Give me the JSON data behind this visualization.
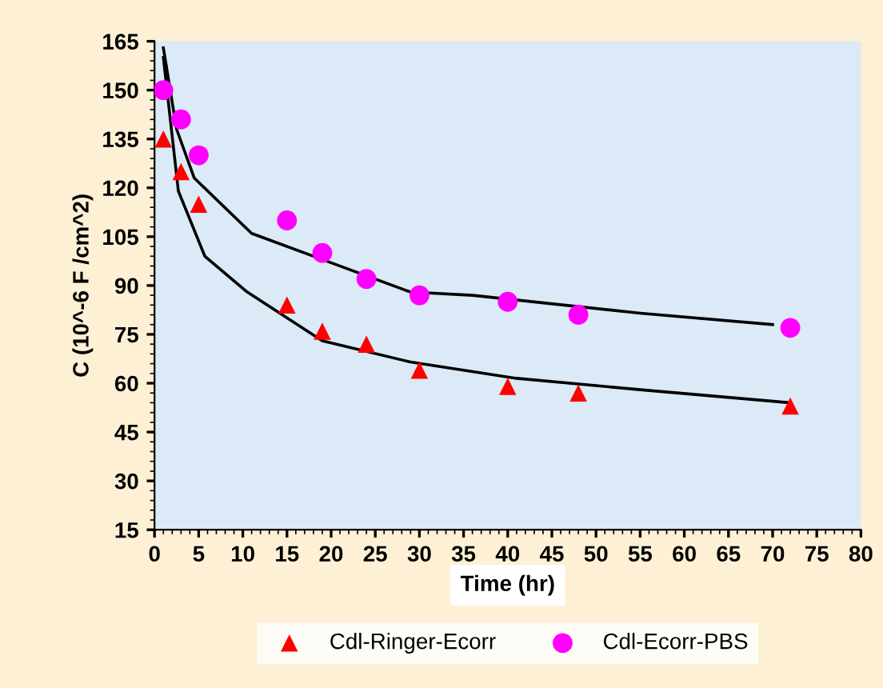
{
  "chart_data": {
    "type": "scatter",
    "xlabel": "Time (hr)",
    "ylabel": "C (10^-6 F /cm^2)",
    "xlim": [
      0,
      80
    ],
    "xticks": [
      0,
      5,
      10,
      15,
      20,
      25,
      30,
      35,
      40,
      45,
      50,
      55,
      60,
      65,
      70,
      75,
      80
    ],
    "ylim": [
      15,
      165
    ],
    "yticks": [
      15,
      30,
      45,
      60,
      75,
      90,
      105,
      120,
      135,
      150,
      165
    ],
    "grid": false,
    "legend": "bottom",
    "series": [
      {
        "name": "Cdl-Ringer-Ecorr",
        "color": "#ff0000",
        "marker": "triangle",
        "x": [
          1,
          3,
          5,
          15,
          19,
          24,
          30,
          40,
          48,
          72
        ],
        "values": [
          135,
          125,
          115,
          84,
          76,
          72,
          64,
          59,
          57,
          53
        ]
      },
      {
        "name": "Cdl-Ecorr-PBS",
        "color": "#ff00ff",
        "marker": "circle",
        "x": [
          1,
          3,
          5,
          15,
          19,
          24,
          30,
          40,
          48,
          72
        ],
        "values": [
          150,
          141,
          130,
          110,
          100,
          92,
          87,
          85,
          81,
          77
        ]
      },
      {
        "type": "line",
        "color": "#000000",
        "marker": "none",
        "x": [
          1,
          2.7,
          5.7,
          10.5,
          19,
          29,
          41,
          55,
          72
        ],
        "values": [
          160,
          119,
          99,
          88,
          73,
          66.5,
          61.5,
          58,
          54
        ]
      },
      {
        "type": "line",
        "color": "#000000",
        "marker": "none",
        "x": [
          1,
          2.5,
          4.5,
          11,
          19,
          29,
          36,
          55,
          70
        ],
        "values": [
          163,
          138,
          123,
          106,
          98,
          88,
          87,
          81.5,
          78
        ]
      }
    ]
  }
}
